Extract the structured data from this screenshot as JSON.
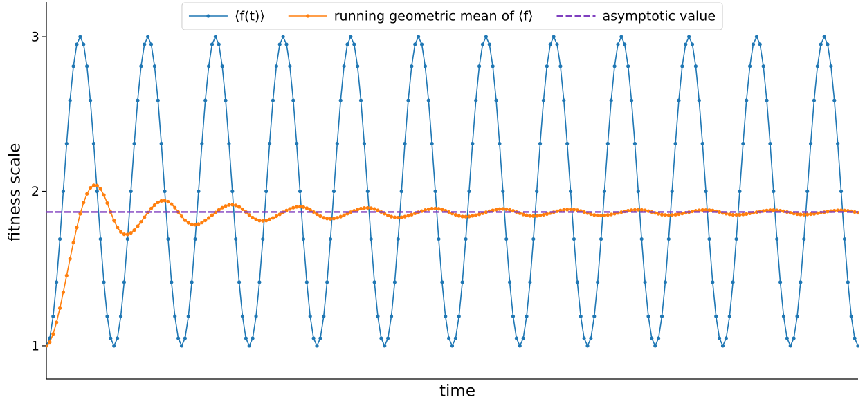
{
  "chart_data": {
    "type": "line",
    "xlabel": "time",
    "ylabel": "fitness scale",
    "ylim": [
      0.785,
      3.224
    ],
    "yticks": [
      1,
      2,
      3
    ],
    "legend": "upper center",
    "series": [
      {
        "name": "⟨f(t)⟩",
        "color": "#1f77b4",
        "values": [
          1,
          1.049,
          1.191,
          1.412,
          1.691,
          2,
          2.309,
          2.588,
          2.809,
          2.951,
          3,
          2.951,
          2.809,
          2.588,
          2.309,
          2,
          1.691,
          1.412,
          1.191,
          1.049,
          1,
          1.049,
          1.191,
          1.412,
          1.691,
          2,
          2.309,
          2.588,
          2.809,
          2.951,
          3,
          2.951,
          2.809,
          2.588,
          2.309,
          2,
          1.691,
          1.412,
          1.191,
          1.049,
          1,
          1.049,
          1.191,
          1.412,
          1.691,
          2,
          2.309,
          2.588,
          2.809,
          2.951,
          3,
          2.951,
          2.809,
          2.588,
          2.309,
          2,
          1.691,
          1.412,
          1.191,
          1.049,
          1,
          1.049,
          1.191,
          1.412,
          1.691,
          2,
          2.309,
          2.588,
          2.809,
          2.951,
          3,
          2.951,
          2.809,
          2.588,
          2.309,
          2,
          1.691,
          1.412,
          1.191,
          1.049,
          1,
          1.049,
          1.191,
          1.412,
          1.691,
          2,
          2.309,
          2.588,
          2.809,
          2.951,
          3,
          2.951,
          2.809,
          2.588,
          2.309,
          2,
          1.691,
          1.412,
          1.191,
          1.049,
          1,
          1.049,
          1.191,
          1.412,
          1.691,
          2,
          2.309,
          2.588,
          2.809,
          2.951,
          3,
          2.951,
          2.809,
          2.588,
          2.309,
          2,
          1.691,
          1.412,
          1.191,
          1.049,
          1,
          1.049,
          1.191,
          1.412,
          1.691,
          2,
          2.309,
          2.588,
          2.809,
          2.951,
          3,
          2.951,
          2.809,
          2.588,
          2.309,
          2,
          1.691,
          1.412,
          1.191,
          1.049,
          1,
          1.049,
          1.191,
          1.412,
          1.691,
          2,
          2.309,
          2.588,
          2.809,
          2.951,
          3,
          2.951,
          2.809,
          2.588,
          2.309,
          2,
          1.691,
          1.412,
          1.191,
          1.049,
          1,
          1.049,
          1.191,
          1.412,
          1.691,
          2,
          2.309,
          2.588,
          2.809,
          2.951,
          3,
          2.951,
          2.809,
          2.588,
          2.309,
          2,
          1.691,
          1.412,
          1.191,
          1.049,
          1,
          1.049,
          1.191,
          1.412,
          1.691,
          2,
          2.309,
          2.588,
          2.809,
          2.951,
          3,
          2.951,
          2.809,
          2.588,
          2.309,
          2,
          1.691,
          1.412,
          1.191,
          1.049,
          1,
          1.049,
          1.191,
          1.412,
          1.691,
          2,
          2.309,
          2.588,
          2.809,
          2.951,
          3,
          2.951,
          2.809,
          2.588,
          2.309,
          2,
          1.691,
          1.412,
          1.191,
          1.049,
          1,
          1.049,
          1.191,
          1.412,
          1.691,
          2,
          2.309,
          2.588,
          2.809,
          2.951,
          3,
          2.951,
          2.809,
          2.588,
          2.309,
          2,
          1.691,
          1.412,
          1.191,
          1.049,
          1
        ]
      },
      {
        "name": "running geometric mean of ⟨f⟩",
        "color": "#ff7f0e",
        "values": [
          1,
          1.024,
          1.077,
          1.152,
          1.244,
          1.347,
          1.455,
          1.563,
          1.668,
          1.766,
          1.854,
          1.927,
          1.983,
          2.022,
          2.039,
          2.037,
          2.015,
          1.976,
          1.924,
          1.866,
          1.811,
          1.767,
          1.737,
          1.722,
          1.721,
          1.731,
          1.749,
          1.774,
          1.802,
          1.832,
          1.862,
          1.889,
          1.911,
          1.928,
          1.938,
          1.94,
          1.933,
          1.917,
          1.894,
          1.866,
          1.838,
          1.813,
          1.796,
          1.786,
          1.784,
          1.788,
          1.798,
          1.812,
          1.828,
          1.846,
          1.863,
          1.88,
          1.894,
          1.905,
          1.912,
          1.913,
          1.909,
          1.899,
          1.884,
          1.866,
          1.847,
          1.83,
          1.818,
          1.811,
          1.809,
          1.811,
          1.818,
          1.828,
          1.839,
          1.851,
          1.864,
          1.876,
          1.886,
          1.894,
          1.899,
          1.901,
          1.898,
          1.891,
          1.88,
          1.866,
          1.852,
          1.839,
          1.829,
          1.824,
          1.822,
          1.824,
          1.829,
          1.836,
          1.845,
          1.855,
          1.865,
          1.874,
          1.882,
          1.888,
          1.892,
          1.893,
          1.891,
          1.886,
          1.877,
          1.866,
          1.855,
          1.844,
          1.836,
          1.832,
          1.83,
          1.832,
          1.836,
          1.842,
          1.849,
          1.857,
          1.865,
          1.872,
          1.879,
          1.884,
          1.888,
          1.889,
          1.887,
          1.882,
          1.875,
          1.866,
          1.856,
          1.848,
          1.841,
          1.837,
          1.836,
          1.837,
          1.841,
          1.845,
          1.851,
          1.858,
          1.865,
          1.871,
          1.877,
          1.882,
          1.885,
          1.886,
          1.884,
          1.88,
          1.874,
          1.866,
          1.858,
          1.85,
          1.845,
          1.841,
          1.84,
          1.841,
          1.844,
          1.848,
          1.853,
          1.859,
          1.865,
          1.871,
          1.876,
          1.88,
          1.882,
          1.883,
          1.882,
          1.878,
          1.873,
          1.866,
          1.859,
          1.852,
          1.847,
          1.844,
          1.843,
          1.844,
          1.847,
          1.85,
          1.855,
          1.86,
          1.865,
          1.87,
          1.875,
          1.878,
          1.88,
          1.881,
          1.88,
          1.877,
          1.872,
          1.866,
          1.86,
          1.854,
          1.849,
          1.847,
          1.846,
          1.847,
          1.849,
          1.852,
          1.856,
          1.861,
          1.865,
          1.87,
          1.874,
          1.877,
          1.879,
          1.879,
          1.878,
          1.876,
          1.871,
          1.866,
          1.86,
          1.855,
          1.851,
          1.848,
          1.848,
          1.848,
          1.85,
          1.853,
          1.857,
          1.861,
          1.865,
          1.869,
          1.873,
          1.876,
          1.878,
          1.878,
          1.877,
          1.875,
          1.871,
          1.866,
          1.861,
          1.856,
          1.852,
          1.85,
          1.849,
          1.85,
          1.852,
          1.854,
          1.858,
          1.862,
          1.865,
          1.869,
          1.872,
          1.875,
          1.877,
          1.877,
          1.876,
          1.874,
          1.871,
          1.866,
          1.861
        ]
      }
    ],
    "hlines": [
      {
        "name": "asymptotic value",
        "value": 1.866,
        "color": "#7f3fbf",
        "style": "dashed"
      }
    ]
  }
}
